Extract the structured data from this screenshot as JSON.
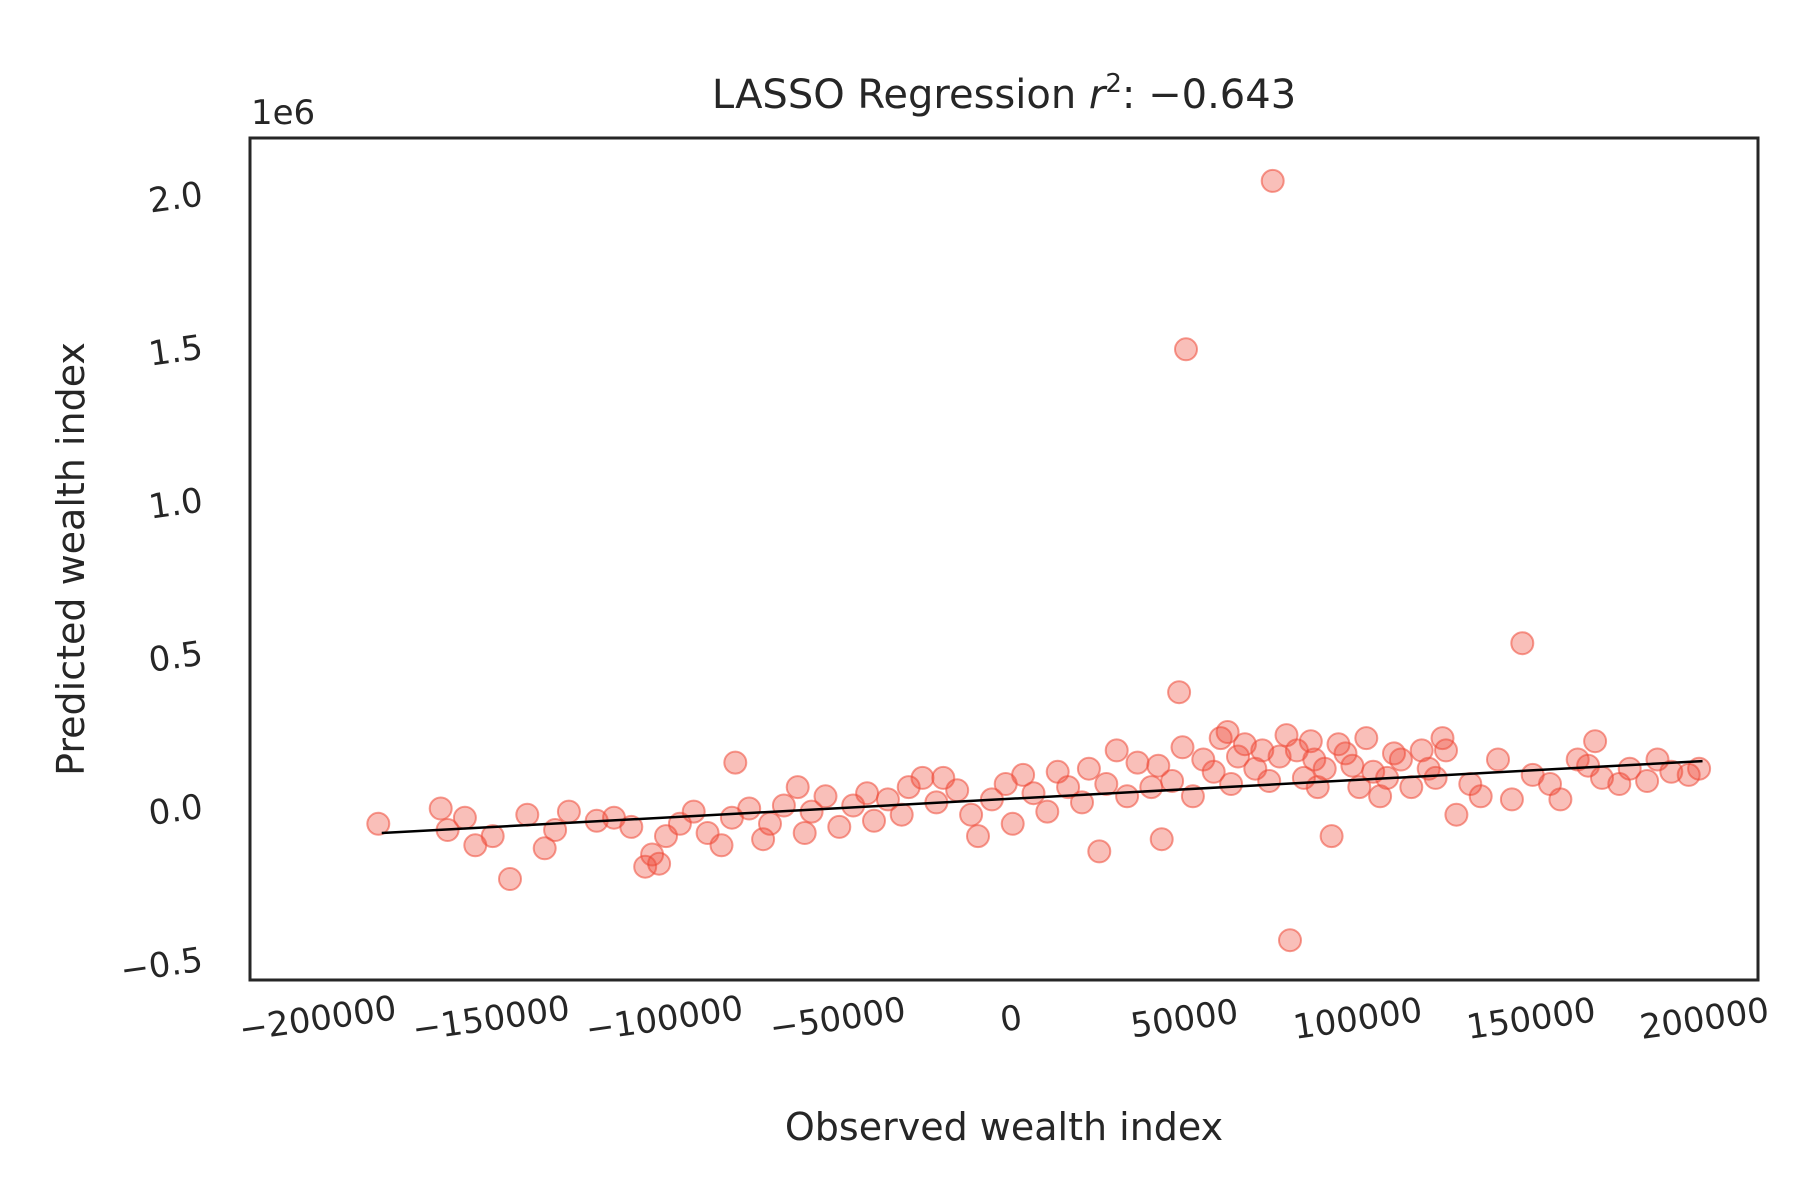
{
  "chart_data": {
    "type": "scatter",
    "title": "LASSO Regression r^2: -0.643",
    "title_parts": {
      "prefix": "LASSO Regression ",
      "r": "r",
      "exp": "2",
      "suffix": ": −0.643"
    },
    "xlabel": "Observed wealth index",
    "ylabel": "Predicted wealth index",
    "y_offset_label": "1e6",
    "xlim": [
      -220000,
      215000
    ],
    "ylim": [
      -570000,
      2180000
    ],
    "x_ticks": [
      -200000,
      -150000,
      -100000,
      -50000,
      0,
      50000,
      100000,
      150000,
      200000
    ],
    "x_tick_labels": [
      "−200000",
      "−150000",
      "−100000",
      "−50000",
      "0",
      "50000",
      "100000",
      "150000",
      "200000"
    ],
    "y_ticks": [
      -500000,
      0,
      500000,
      1000000,
      1500000,
      2000000
    ],
    "y_tick_labels": [
      "−0.5",
      "0.0",
      "0.5",
      "1.0",
      "1.5",
      "2.0"
    ],
    "grid": false,
    "colors": {
      "points": "#ee4836",
      "fit_line": "#000000",
      "axes": "#262626"
    },
    "fit_line": {
      "x": [
        -182000,
        199000
      ],
      "y": [
        -90000,
        145000
      ]
    },
    "series": [
      {
        "marker": "circle",
        "alpha": 0.35,
        "points": [
          [
            -183000,
            -60000
          ],
          [
            -165000,
            -10000
          ],
          [
            -163000,
            -80000
          ],
          [
            -158000,
            -40000
          ],
          [
            -155000,
            -130000
          ],
          [
            -150000,
            -100000
          ],
          [
            -145000,
            -240000
          ],
          [
            -140000,
            -30000
          ],
          [
            -135000,
            -140000
          ],
          [
            -132000,
            -80000
          ],
          [
            -128000,
            -20000
          ],
          [
            -120000,
            -50000
          ],
          [
            -115000,
            -40000
          ],
          [
            -110000,
            -70000
          ],
          [
            -106000,
            -200000
          ],
          [
            -104000,
            -160000
          ],
          [
            -102000,
            -190000
          ],
          [
            -100000,
            -100000
          ],
          [
            -96000,
            -60000
          ],
          [
            -92000,
            -20000
          ],
          [
            -88000,
            -90000
          ],
          [
            -84000,
            -130000
          ],
          [
            -81000,
            -40000
          ],
          [
            -80000,
            140000
          ],
          [
            -76000,
            -10000
          ],
          [
            -72000,
            -110000
          ],
          [
            -70000,
            -60000
          ],
          [
            -66000,
            0
          ],
          [
            -62000,
            60000
          ],
          [
            -60000,
            -90000
          ],
          [
            -58000,
            -20000
          ],
          [
            -54000,
            30000
          ],
          [
            -50000,
            -70000
          ],
          [
            -46000,
            0
          ],
          [
            -42000,
            40000
          ],
          [
            -40000,
            -50000
          ],
          [
            -36000,
            20000
          ],
          [
            -32000,
            -30000
          ],
          [
            -30000,
            60000
          ],
          [
            -26000,
            90000
          ],
          [
            -22000,
            10000
          ],
          [
            -20000,
            90000
          ],
          [
            -16000,
            50000
          ],
          [
            -12000,
            -30000
          ],
          [
            -10000,
            -100000
          ],
          [
            -6000,
            20000
          ],
          [
            -2000,
            70000
          ],
          [
            0,
            -60000
          ],
          [
            3000,
            100000
          ],
          [
            6000,
            40000
          ],
          [
            10000,
            -20000
          ],
          [
            13000,
            110000
          ],
          [
            16000,
            60000
          ],
          [
            20000,
            10000
          ],
          [
            22000,
            120000
          ],
          [
            25000,
            -150000
          ],
          [
            27000,
            70000
          ],
          [
            30000,
            180000
          ],
          [
            33000,
            30000
          ],
          [
            36000,
            140000
          ],
          [
            40000,
            60000
          ],
          [
            42000,
            130000
          ],
          [
            43000,
            -110000
          ],
          [
            46000,
            80000
          ],
          [
            48000,
            370000
          ],
          [
            49000,
            190000
          ],
          [
            50000,
            1490000
          ],
          [
            52000,
            30000
          ],
          [
            55000,
            150000
          ],
          [
            58000,
            110000
          ],
          [
            60000,
            220000
          ],
          [
            62000,
            240000
          ],
          [
            63000,
            70000
          ],
          [
            65000,
            160000
          ],
          [
            67000,
            200000
          ],
          [
            70000,
            120000
          ],
          [
            72000,
            180000
          ],
          [
            74000,
            80000
          ],
          [
            75000,
            2040000
          ],
          [
            77000,
            160000
          ],
          [
            79000,
            230000
          ],
          [
            80000,
            -440000
          ],
          [
            82000,
            180000
          ],
          [
            84000,
            90000
          ],
          [
            86000,
            210000
          ],
          [
            87000,
            150000
          ],
          [
            88000,
            60000
          ],
          [
            90000,
            120000
          ],
          [
            92000,
            -100000
          ],
          [
            94000,
            200000
          ],
          [
            96000,
            170000
          ],
          [
            98000,
            130000
          ],
          [
            100000,
            60000
          ],
          [
            102000,
            220000
          ],
          [
            104000,
            110000
          ],
          [
            106000,
            30000
          ],
          [
            108000,
            90000
          ],
          [
            110000,
            170000
          ],
          [
            112000,
            150000
          ],
          [
            115000,
            60000
          ],
          [
            118000,
            180000
          ],
          [
            120000,
            120000
          ],
          [
            122000,
            90000
          ],
          [
            124000,
            220000
          ],
          [
            125000,
            180000
          ],
          [
            128000,
            -30000
          ],
          [
            132000,
            70000
          ],
          [
            135000,
            30000
          ],
          [
            140000,
            150000
          ],
          [
            144000,
            20000
          ],
          [
            147000,
            530000
          ],
          [
            150000,
            100000
          ],
          [
            155000,
            70000
          ],
          [
            158000,
            20000
          ],
          [
            163000,
            150000
          ],
          [
            166000,
            130000
          ],
          [
            168000,
            210000
          ],
          [
            170000,
            90000
          ],
          [
            175000,
            70000
          ],
          [
            178000,
            120000
          ],
          [
            183000,
            80000
          ],
          [
            186000,
            150000
          ],
          [
            190000,
            110000
          ],
          [
            195000,
            100000
          ],
          [
            198000,
            120000
          ]
        ]
      }
    ]
  }
}
